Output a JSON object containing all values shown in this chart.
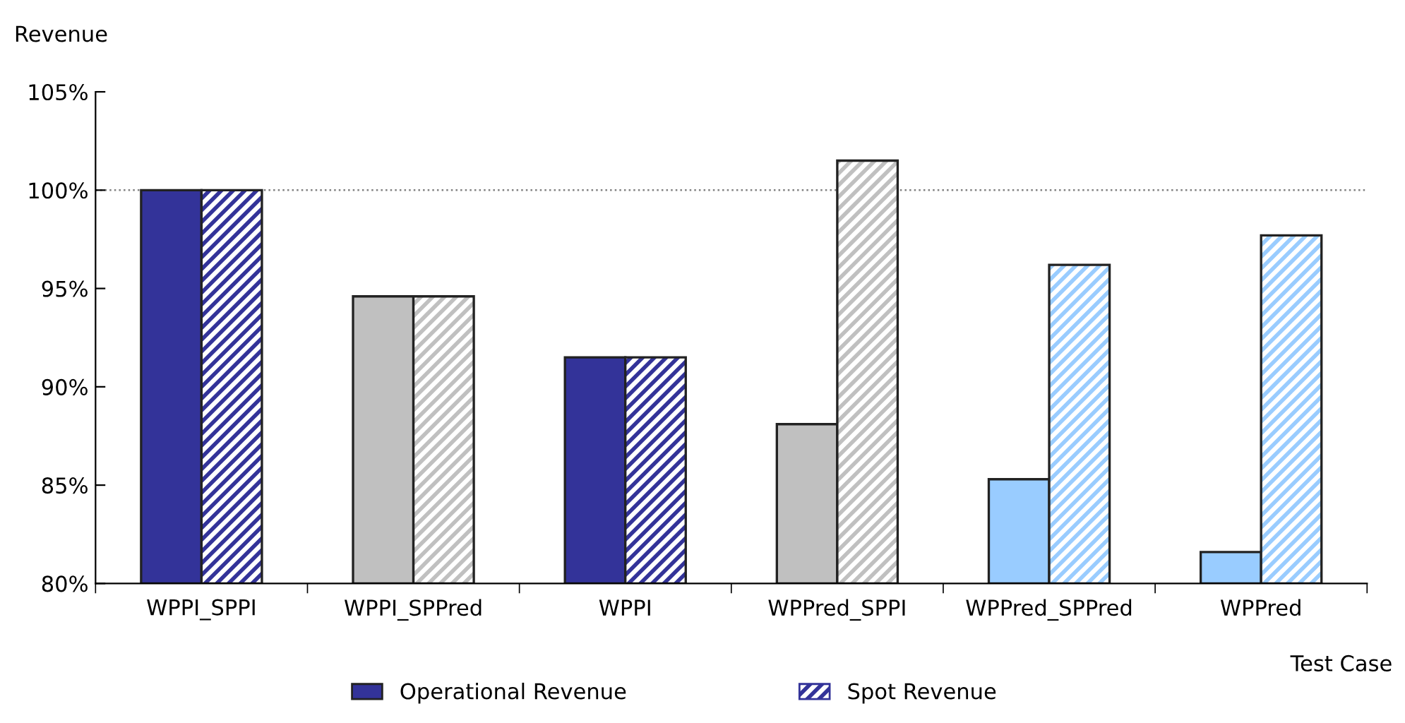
{
  "chart_data": {
    "type": "bar",
    "ylabel": "Revenue",
    "xlabel": "Test Case",
    "categories": [
      "WPPI_SPPI",
      "WPPI_SPPred",
      "WPPI",
      "WPPred_SPPI",
      "WPPred_SPPred",
      "WPPred"
    ],
    "series": [
      {
        "name": "Operational Revenue",
        "color": "#333399",
        "colors": [
          "#333399",
          "#c0c0c0",
          "#333399",
          "#c0c0c0",
          "#99ccff",
          "#99ccff"
        ],
        "values": [
          100,
          94.6,
          91.5,
          88.1,
          85.3,
          81.6
        ]
      },
      {
        "name": "Spot Revenue",
        "color": "#333399",
        "colors": [
          "#333399",
          "#c0c0c0",
          "#333399",
          "#c0c0c0",
          "#99ccff",
          "#99ccff"
        ],
        "values": [
          100,
          94.6,
          91.5,
          101.5,
          96.2,
          97.7
        ]
      }
    ],
    "ylim": [
      80,
      105
    ],
    "yticks": [
      {
        "value": 80,
        "label": "80%"
      },
      {
        "value": 85,
        "label": "85%"
      },
      {
        "value": 90,
        "label": "90%"
      },
      {
        "value": 95,
        "label": "95%"
      },
      {
        "value": 100,
        "label": "100%"
      },
      {
        "value": 105,
        "label": "105%"
      }
    ],
    "ref_lines": [
      {
        "axis": "y",
        "value": 100,
        "color": "#808080",
        "line_style": "dotted"
      }
    ],
    "grid": false,
    "legend": "bottom"
  }
}
